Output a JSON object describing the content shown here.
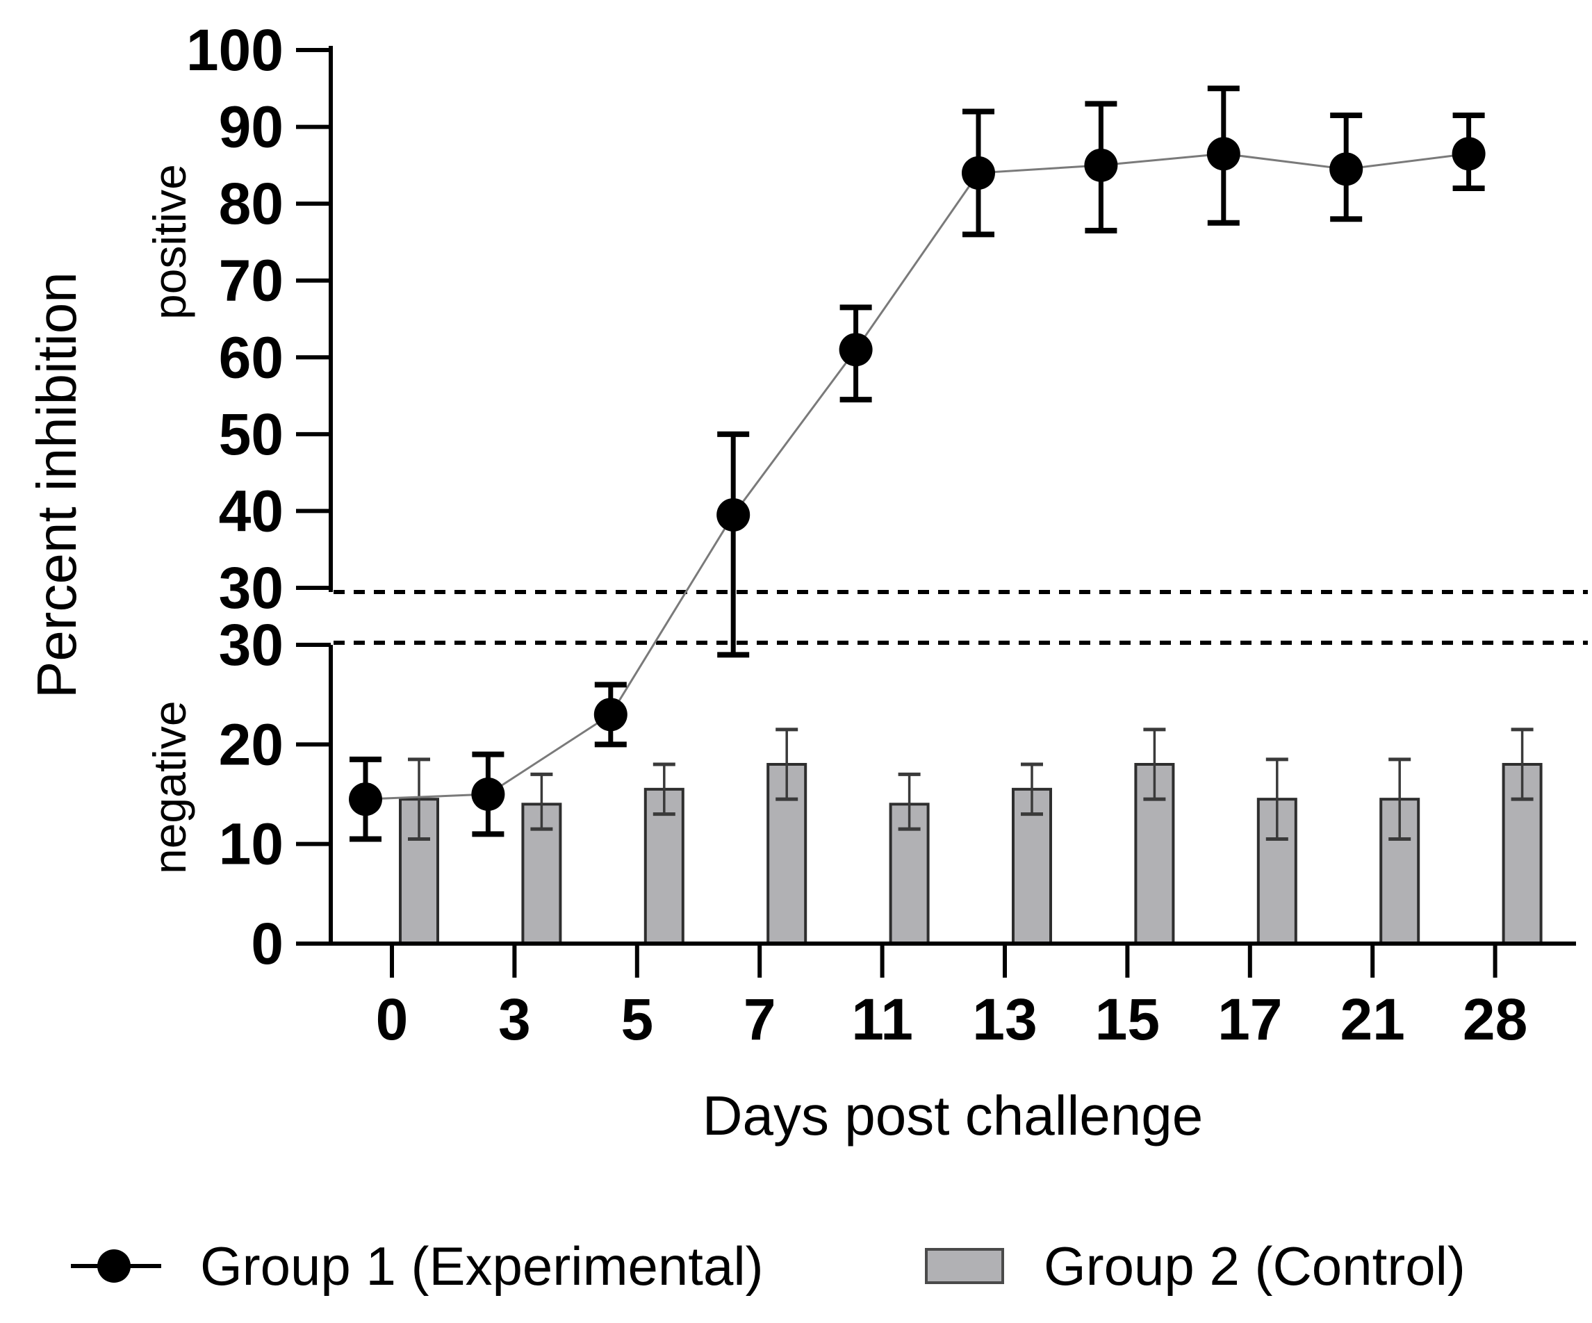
{
  "figure": {
    "background": "#ffffff"
  },
  "colors": {
    "series1": "#000000",
    "series1_line": "#7a7a7a",
    "bar_fill": "#b1b1b4",
    "bar_border": "#2e2e2e",
    "bar_error": "#3a3a3a",
    "axis": "#000000",
    "threshold_line": "#000000",
    "text": "#000000"
  },
  "legend": {
    "items": [
      {
        "label": "Group 1 (Experimental)",
        "marker": "filled-circle-with-line"
      },
      {
        "label": "Group 2 (Control)",
        "marker": "gray-bar-swatch"
      }
    ]
  },
  "chart_data": {
    "type": "line+bar",
    "split_y_axis": true,
    "title": "",
    "categories": [
      0,
      3,
      5,
      7,
      11,
      13,
      15,
      17,
      21,
      28
    ],
    "x_tick_labels": [
      "0",
      "3",
      "5",
      "7",
      "11",
      "13",
      "15",
      "17",
      "21",
      "28"
    ],
    "x_axis": {
      "title": "Days post challenge"
    },
    "y_axis": {
      "title": "Percent inhibition",
      "top_panel": {
        "label": "positive",
        "range": [
          30,
          100
        ],
        "ticks": [
          100,
          90,
          80,
          70,
          60,
          50,
          40,
          30
        ],
        "tick_labels": [
          "100",
          "90",
          "80",
          "70",
          "60",
          "50",
          "40",
          "30"
        ]
      },
      "bottom_panel": {
        "label": "negative",
        "range": [
          0,
          30
        ],
        "ticks": [
          30,
          20,
          10,
          0
        ],
        "tick_labels": [
          "30",
          "20",
          "10",
          "0"
        ]
      },
      "threshold_dashed_value": 30
    },
    "series": [
      {
        "name": "Group 1 (Experimental)",
        "type": "scatter-line",
        "marker": "filled-circle",
        "values": [
          14.5,
          15,
          23,
          39.5,
          61,
          84,
          85,
          86.5,
          84.5,
          86.5
        ],
        "err_low": [
          10.5,
          11,
          20,
          29,
          54.5,
          76,
          76.5,
          77.5,
          78,
          82
        ],
        "err_high": [
          18.5,
          19,
          26,
          50,
          66.5,
          92,
          93,
          95,
          91.5,
          91.5
        ]
      },
      {
        "name": "Group 2 (Control)",
        "type": "bar",
        "values": [
          14.5,
          14,
          15.5,
          18,
          14,
          15.5,
          18,
          14.5,
          14.5,
          18
        ],
        "err_low": [
          10.5,
          11.5,
          13,
          14.5,
          11.5,
          13,
          14.5,
          10.5,
          10.5,
          14.5
        ],
        "err_high": [
          18.5,
          17,
          18,
          21.5,
          17,
          18,
          21.5,
          18.5,
          18.5,
          21.5
        ]
      }
    ],
    "layout_hints": {
      "grid": false,
      "legend_position": "bottom",
      "error_bars": "both-directions",
      "axis_break_between": [
        30,
        30
      ]
    }
  }
}
